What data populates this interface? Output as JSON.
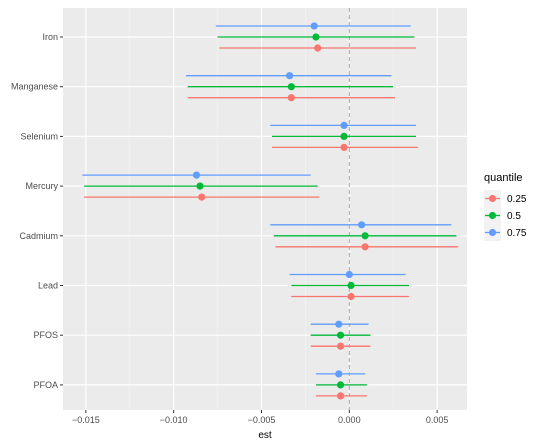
{
  "chart_data": {
    "type": "scatter",
    "subtype": "point-range (estimate with confidence interval)",
    "title": "",
    "xlabel": "est",
    "ylabel": "",
    "xlim": [
      -0.0163,
      0.0067
    ],
    "x_ticks": [
      -0.015,
      -0.01,
      -0.005,
      0.0,
      0.005
    ],
    "x_tick_labels": [
      "−0.015",
      "−0.010",
      "−0.005",
      "0.000",
      "0.005"
    ],
    "reference_line": {
      "x": 0.0,
      "style": "dashed"
    },
    "grid": true,
    "legend": {
      "title": "quantile",
      "placement": "right"
    },
    "categories": [
      "Iron",
      "Manganese",
      "Selenium",
      "Mercury",
      "Cadmium",
      "Lead",
      "PFOS",
      "PFOA"
    ],
    "series": [
      {
        "name": "0.25",
        "color": "#F8766D",
        "points": [
          {
            "category": "Iron",
            "est": -0.0018,
            "low": -0.0074,
            "high": 0.0038
          },
          {
            "category": "Manganese",
            "est": -0.0033,
            "low": -0.0092,
            "high": 0.0026
          },
          {
            "category": "Selenium",
            "est": -0.0003,
            "low": -0.0044,
            "high": 0.0039
          },
          {
            "category": "Mercury",
            "est": -0.0084,
            "low": -0.0151,
            "high": -0.0017
          },
          {
            "category": "Cadmium",
            "est": 0.0009,
            "low": -0.0042,
            "high": 0.0062
          },
          {
            "category": "Lead",
            "est": 0.0001,
            "low": -0.0033,
            "high": 0.0034
          },
          {
            "category": "PFOS",
            "est": -0.0005,
            "low": -0.0022,
            "high": 0.0012
          },
          {
            "category": "PFOA",
            "est": -0.0005,
            "low": -0.0019,
            "high": 0.001
          }
        ]
      },
      {
        "name": "0.5",
        "color": "#00BA38",
        "points": [
          {
            "category": "Iron",
            "est": -0.0019,
            "low": -0.0075,
            "high": 0.0037
          },
          {
            "category": "Manganese",
            "est": -0.0033,
            "low": -0.0092,
            "high": 0.0025
          },
          {
            "category": "Selenium",
            "est": -0.0003,
            "low": -0.0044,
            "high": 0.0038
          },
          {
            "category": "Mercury",
            "est": -0.0085,
            "low": -0.0151,
            "high": -0.0018
          },
          {
            "category": "Cadmium",
            "est": 0.0009,
            "low": -0.0043,
            "high": 0.0061
          },
          {
            "category": "Lead",
            "est": 0.0001,
            "low": -0.0033,
            "high": 0.0034
          },
          {
            "category": "PFOS",
            "est": -0.0005,
            "low": -0.0022,
            "high": 0.0012
          },
          {
            "category": "PFOA",
            "est": -0.0005,
            "low": -0.0019,
            "high": 0.001
          }
        ]
      },
      {
        "name": "0.75",
        "color": "#619CFF",
        "points": [
          {
            "category": "Iron",
            "est": -0.002,
            "low": -0.0076,
            "high": 0.0035
          },
          {
            "category": "Manganese",
            "est": -0.0034,
            "low": -0.0093,
            "high": 0.0024
          },
          {
            "category": "Selenium",
            "est": -0.0003,
            "low": -0.0045,
            "high": 0.0038
          },
          {
            "category": "Mercury",
            "est": -0.0087,
            "low": -0.0152,
            "high": -0.0022
          },
          {
            "category": "Cadmium",
            "est": 0.0007,
            "low": -0.0045,
            "high": 0.0058
          },
          {
            "category": "Lead",
            "est": 0.0,
            "low": -0.0034,
            "high": 0.0032
          },
          {
            "category": "PFOS",
            "est": -0.0006,
            "low": -0.0022,
            "high": 0.0011
          },
          {
            "category": "PFOA",
            "est": -0.0006,
            "low": -0.0019,
            "high": 0.0009
          }
        ]
      }
    ]
  }
}
